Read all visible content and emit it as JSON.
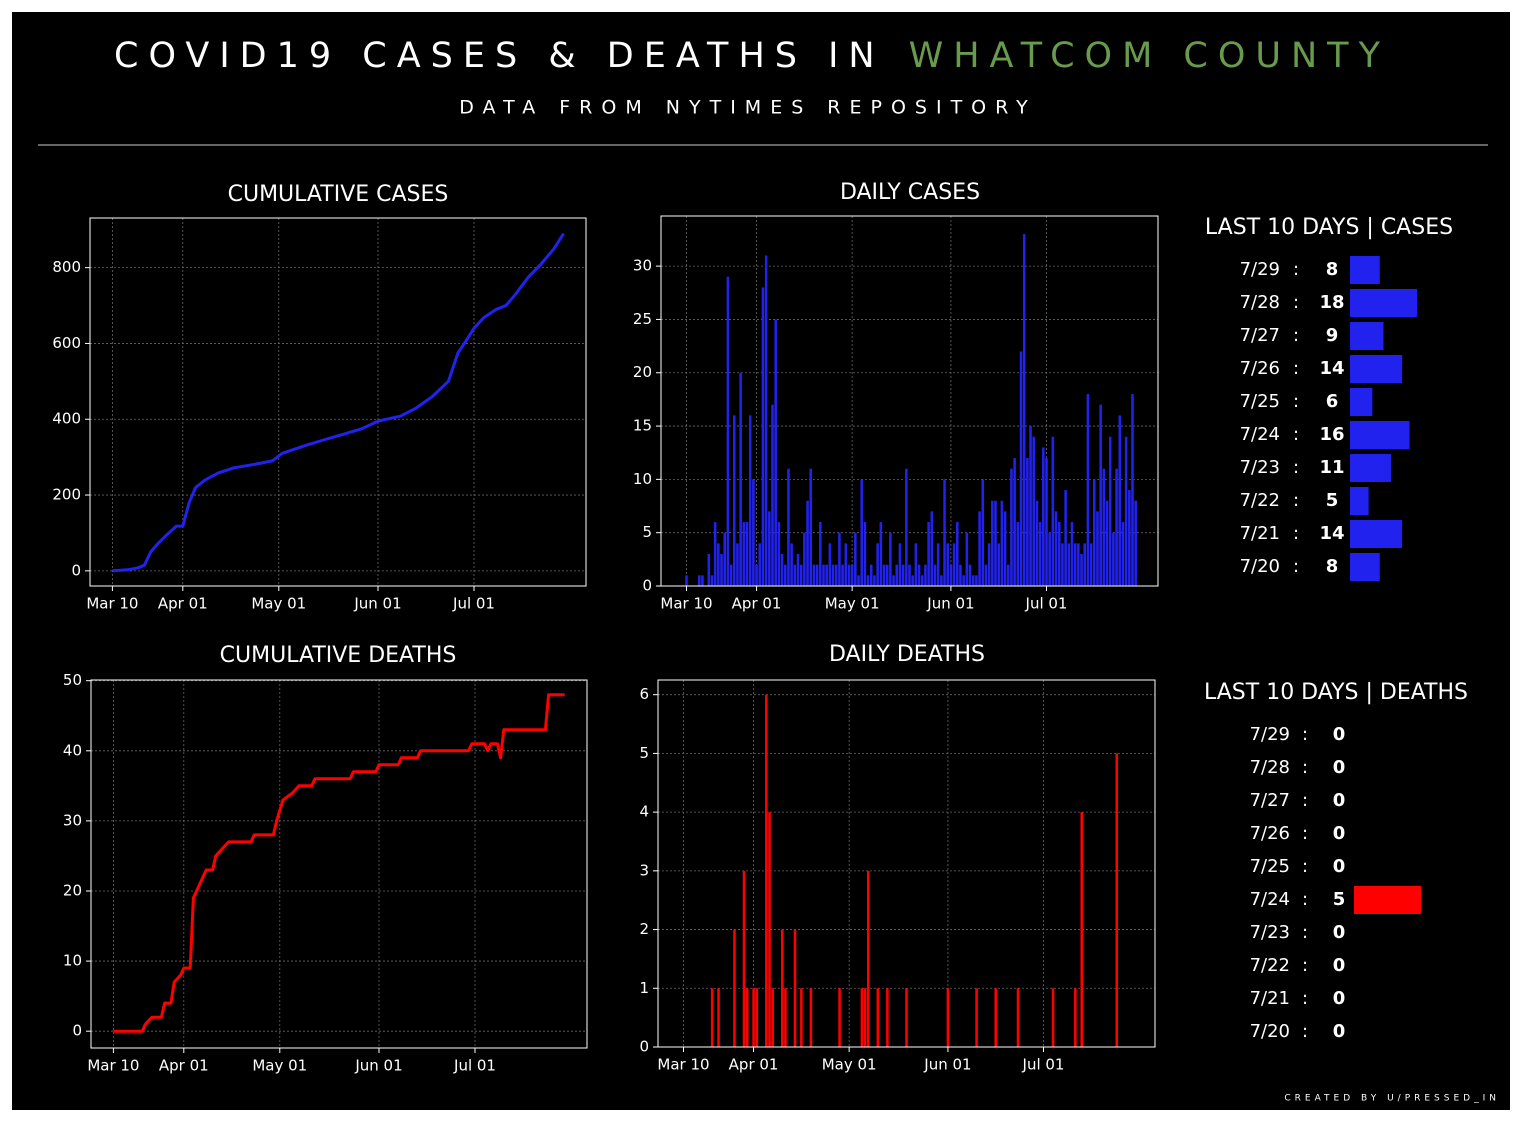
{
  "header": {
    "title": "COVID19 CASES & DEATHS IN",
    "highlight": "WHATCOM COUNTY",
    "subtitle": "DATA FROM NYTIMES REPOSITORY",
    "footer": "CREATED BY U/PRESSED_IN"
  },
  "chart_data": [
    {
      "type": "line",
      "title": "CUMULATIVE CASES",
      "color": "#2222ee",
      "x": [
        0,
        5,
        8,
        10,
        12,
        14,
        17,
        20,
        22,
        24,
        26,
        29,
        33,
        38,
        45,
        50,
        53,
        60,
        67,
        72,
        78,
        83,
        90,
        95,
        100,
        105,
        108,
        110,
        113,
        116,
        120,
        123,
        126,
        130,
        134,
        138,
        141
      ],
      "values": [
        0,
        3,
        8,
        15,
        50,
        70,
        95,
        118,
        118,
        180,
        220,
        240,
        258,
        272,
        282,
        290,
        310,
        330,
        348,
        360,
        375,
        395,
        408,
        430,
        460,
        500,
        575,
        600,
        640,
        668,
        690,
        700,
        730,
        775,
        810,
        850,
        890
      ],
      "xlim": [
        -7,
        148
      ],
      "ylim": [
        -40,
        931
      ],
      "xticks": [
        {
          "value": 0,
          "label": "Mar 10"
        },
        {
          "value": 22,
          "label": "Apr 01"
        },
        {
          "value": 52,
          "label": "May 01"
        },
        {
          "value": 83,
          "label": "Jun 01"
        },
        {
          "value": 113,
          "label": "Jul 01"
        }
      ],
      "yticks": [
        0,
        200,
        400,
        600,
        800
      ],
      "grid": true
    },
    {
      "type": "bar",
      "title": "DAILY CASES",
      "color": "#2222ee",
      "x": [
        0,
        1,
        2,
        3,
        4,
        5,
        6,
        7,
        8,
        9,
        10,
        11,
        12,
        13,
        14,
        15,
        16,
        17,
        18,
        19,
        20,
        21,
        22,
        23,
        24,
        25,
        26,
        27,
        28,
        29,
        30,
        31,
        32,
        33,
        34,
        35,
        36,
        37,
        38,
        39,
        40,
        41,
        42,
        43,
        44,
        45,
        46,
        47,
        48,
        49,
        50,
        51,
        52,
        53,
        54,
        55,
        56,
        57,
        58,
        59,
        60,
        61,
        62,
        63,
        64,
        65,
        66,
        67,
        68,
        69,
        70,
        71,
        72,
        73,
        74,
        75,
        76,
        77,
        78,
        79,
        80,
        81,
        82,
        83,
        84,
        85,
        86,
        87,
        88,
        89,
        90,
        91,
        92,
        93,
        94,
        95,
        96,
        97,
        98,
        99,
        100,
        101,
        102,
        103,
        104,
        105,
        106,
        107,
        108,
        109,
        110,
        111,
        112,
        113,
        114,
        115,
        116,
        117,
        118,
        119,
        120,
        121,
        122,
        123,
        124,
        125,
        126,
        127,
        128,
        129,
        130,
        131,
        132,
        133,
        134,
        135,
        136,
        137,
        138,
        139,
        140,
        141
      ],
      "values": [
        1,
        0,
        0,
        0,
        1,
        1,
        0,
        3,
        1,
        6,
        4,
        3,
        5,
        29,
        2,
        16,
        4,
        20,
        6,
        6,
        16,
        10,
        2,
        4,
        28,
        31,
        7,
        17,
        25,
        6,
        3,
        2,
        11,
        4,
        2,
        3,
        2,
        5,
        8,
        11,
        2,
        2,
        6,
        2,
        2,
        4,
        2,
        2,
        5,
        2,
        4,
        2,
        2,
        5,
        1,
        10,
        6,
        1,
        2,
        1,
        4,
        6,
        2,
        2,
        5,
        1,
        2,
        4,
        2,
        11,
        2,
        1,
        4,
        2,
        1,
        2,
        6,
        7,
        2,
        4,
        1,
        10,
        4,
        2,
        4,
        6,
        2,
        1,
        5,
        2,
        1,
        1,
        7,
        10,
        2,
        4,
        8,
        8,
        4,
        8,
        7,
        2,
        11,
        12,
        6,
        22,
        33,
        12,
        15,
        14,
        8,
        6,
        13,
        12,
        5,
        14,
        7,
        6,
        4,
        9,
        4,
        6,
        4,
        4,
        3,
        4,
        18,
        4,
        10,
        7,
        17,
        11,
        8,
        14,
        5,
        11,
        16,
        6,
        14,
        9,
        18,
        8
      ],
      "xlim": [
        -8,
        148
      ],
      "ylim": [
        0,
        34.7
      ],
      "xticks": [
        {
          "value": 0,
          "label": "Mar 10"
        },
        {
          "value": 22,
          "label": "Apr 01"
        },
        {
          "value": 52,
          "label": "May 01"
        },
        {
          "value": 83,
          "label": "Jun 01"
        },
        {
          "value": 113,
          "label": "Jul 01"
        }
      ],
      "yticks": [
        0,
        5,
        10,
        15,
        20,
        25,
        30
      ],
      "grid": true
    },
    {
      "type": "line",
      "title": "CUMULATIVE DEATHS",
      "color": "#ff0000",
      "x": [
        0,
        9,
        10,
        12,
        15,
        16,
        18,
        19,
        21,
        22,
        24,
        25,
        27,
        29,
        31,
        32,
        34,
        36,
        43,
        44,
        50,
        51,
        53,
        56,
        58,
        62,
        63,
        74,
        75,
        82,
        83,
        89,
        90,
        95,
        96,
        111,
        112,
        116,
        117,
        118,
        120,
        121,
        122,
        126,
        127,
        135,
        136,
        141
      ],
      "values": [
        0,
        0,
        1,
        2,
        2,
        4,
        4,
        7,
        8,
        9,
        9,
        19,
        21,
        23,
        23,
        25,
        26,
        27,
        27,
        28,
        28,
        30,
        33,
        34,
        35,
        35,
        36,
        36,
        37,
        37,
        38,
        38,
        39,
        39,
        40,
        40,
        41,
        41,
        40,
        41,
        41,
        39,
        43,
        43,
        43,
        43,
        48,
        48
      ],
      "xlim": [
        -7,
        148
      ],
      "ylim": [
        -2.4,
        50.1
      ],
      "xticks": [
        {
          "value": 0,
          "label": "Mar 10"
        },
        {
          "value": 22,
          "label": "Apr 01"
        },
        {
          "value": 52,
          "label": "May 01"
        },
        {
          "value": 83,
          "label": "Jun 01"
        },
        {
          "value": 113,
          "label": "Jul 01"
        }
      ],
      "yticks": [
        0,
        10,
        20,
        30,
        40,
        50
      ],
      "grid": true
    },
    {
      "type": "bar",
      "title": "DAILY DEATHS",
      "color": "#ff0000",
      "x": [
        9,
        11,
        16,
        19,
        20,
        22,
        23,
        26,
        27,
        28,
        31,
        32,
        35,
        37,
        40,
        49,
        56,
        57,
        58,
        61,
        64,
        70,
        83,
        92,
        98,
        105,
        116,
        123,
        125,
        136
      ],
      "values": [
        1,
        1,
        2,
        3,
        1,
        1,
        1,
        6,
        4,
        1,
        2,
        1,
        2,
        1,
        1,
        1,
        1,
        1,
        3,
        1,
        1,
        1,
        1,
        1,
        1,
        1,
        1,
        1,
        4,
        5
      ],
      "xlim": [
        -8,
        148
      ],
      "ylim": [
        0,
        6.25
      ],
      "xticks": [
        {
          "value": 0,
          "label": "Mar 10"
        },
        {
          "value": 22,
          "label": "Apr 01"
        },
        {
          "value": 52,
          "label": "May 01"
        },
        {
          "value": 83,
          "label": "Jun 01"
        },
        {
          "value": 113,
          "label": "Jul 01"
        }
      ],
      "yticks": [
        0,
        1,
        2,
        3,
        4,
        5,
        6
      ],
      "grid": true
    },
    {
      "type": "bar",
      "title": "LAST 10 DAYS | CASES",
      "color": "#2222ee",
      "separator": ":",
      "categories": [
        "7/29",
        "7/28",
        "7/27",
        "7/26",
        "7/25",
        "7/24",
        "7/23",
        "7/22",
        "7/21",
        "7/20"
      ],
      "values": [
        8,
        18,
        9,
        14,
        6,
        16,
        11,
        5,
        14,
        8
      ]
    },
    {
      "type": "bar",
      "title": "LAST 10 DAYS | DEATHS",
      "color": "#ff0000",
      "separator": ":",
      "categories": [
        "7/29",
        "7/28",
        "7/27",
        "7/26",
        "7/25",
        "7/24",
        "7/23",
        "7/22",
        "7/21",
        "7/20"
      ],
      "values": [
        0,
        0,
        0,
        0,
        0,
        5,
        0,
        0,
        0,
        0
      ]
    }
  ]
}
